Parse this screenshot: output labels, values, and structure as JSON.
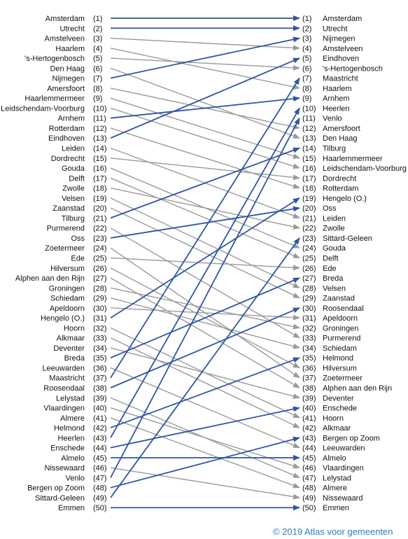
{
  "chart_data": {
    "type": "slope",
    "title": "",
    "rank_count": 50,
    "left": [
      "Amsterdam",
      "Utrecht",
      "Amstelveen",
      "Haarlem",
      "'s-Hertogenbosch",
      "Den Haag",
      "Nijmegen",
      "Amersfoort",
      "Haarlemmermeer",
      "Leidschendam-Voorburg",
      "Arnhem",
      "Rotterdam",
      "Eindhoven",
      "Leiden",
      "Dordrecht",
      "Gouda",
      "Delft",
      "Zwolle",
      "Velsen",
      "Zaanstad",
      "Tilburg",
      "Purmerend",
      "Oss",
      "Zoetermeer",
      "Ede",
      "Hilversum",
      "Alphen aan den Rijn",
      "Groningen",
      "Schiedam",
      "Apeldoorn",
      "Hengelo (O.)",
      "Hoorn",
      "Alkmaar",
      "Deventer",
      "Breda",
      "Leeuwarden",
      "Maastricht",
      "Roosendaal",
      "Lelystad",
      "Vlaardingen",
      "Almere",
      "Helmond",
      "Heerlen",
      "Enschede",
      "Almelo",
      "Nissewaard",
      "Venlo",
      "Bergen op Zoom",
      "Sittard-Geleen",
      "Emmen"
    ],
    "right": [
      "Amsterdam",
      "Utrecht",
      "Nijmegen",
      "Amstelveen",
      "Eindhoven",
      "'s-Hertogenbosch",
      "Maastricht",
      "Haarlem",
      "Arnhem",
      "Heerlen",
      "Venlo",
      "Amersfoort",
      "Den Haag",
      "Tilburg",
      "Haarlemmermeer",
      "Leidschendam-Voorburg",
      "Dordrecht",
      "Rotterdam",
      "Hengelo (O.)",
      "Oss",
      "Leiden",
      "Zwolle",
      "Sittard-Geleen",
      "Gouda",
      "Delft",
      "Ede",
      "Breda",
      "Velsen",
      "Zaanstad",
      "Roosendaal",
      "Apeldoorn",
      "Groningen",
      "Purmerend",
      "Schiedam",
      "Helmond",
      "Hilversum",
      "Zoetermeer",
      "Alphen aan den Rijn",
      "Deventer",
      "Enschede",
      "Hoorn",
      "Alkmaar",
      "Bergen op Zoom",
      "Leeuwarden",
      "Almelo",
      "Vlaardingen",
      "Lelystad",
      "Almere",
      "Nissewaard",
      "Emmen"
    ],
    "highlighted": [
      "Amsterdam",
      "Utrecht",
      "Nijmegen",
      "Eindhoven",
      "Maastricht",
      "Arnhem",
      "Heerlen",
      "Venlo",
      "Tilburg",
      "Hengelo (O.)",
      "Oss",
      "Sittard-Geleen",
      "Breda",
      "Roosendaal",
      "Helmond",
      "Enschede",
      "Bergen op Zoom",
      "Almelo",
      "Emmen"
    ]
  },
  "colors": {
    "highlight": "#2f55a4",
    "normal": "#9a9a9a",
    "text": "#111111",
    "copyright": "#2a7fc0"
  },
  "copyright": "© 2019 Atlas voor gemeenten"
}
